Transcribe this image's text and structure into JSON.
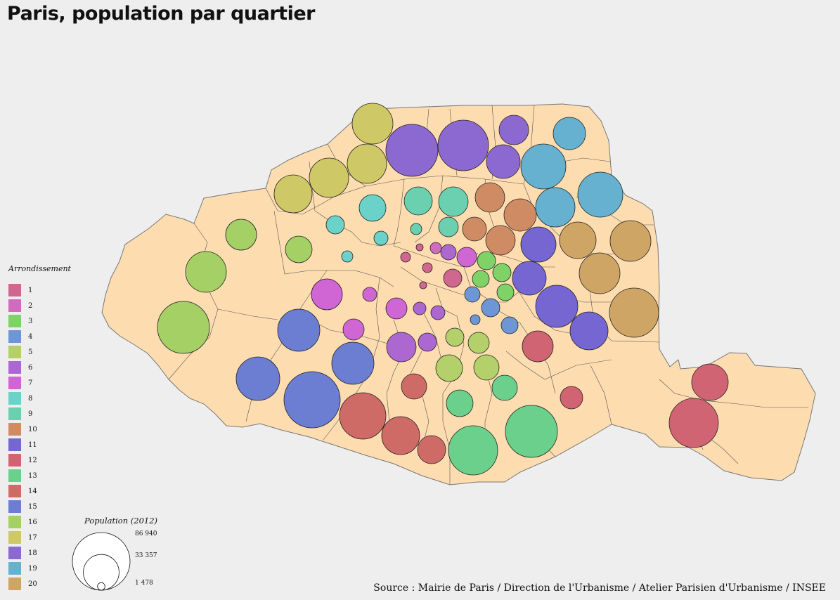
{
  "title": "Paris, population par quartier",
  "source": "Source : Mairie de Paris / Direction de l'Urbanisme / Atelier Parisien d'Urbanisme / INSEE",
  "colors": {
    "land": "#fddcb0",
    "border": "#555555",
    "background": "#eeeeee"
  },
  "legend": {
    "title": "Arrondissement",
    "items": [
      {
        "label": "1",
        "color": "#d0678f"
      },
      {
        "label": "2",
        "color": "#d06bc0"
      },
      {
        "label": "3",
        "color": "#7fd266"
      },
      {
        "label": "4",
        "color": "#6d96d6"
      },
      {
        "label": "5",
        "color": "#b4d06a"
      },
      {
        "label": "6",
        "color": "#ac68d0"
      },
      {
        "label": "7",
        "color": "#d066d3"
      },
      {
        "label": "8",
        "color": "#6ad2c8"
      },
      {
        "label": "9",
        "color": "#6bd0b0"
      },
      {
        "label": "10",
        "color": "#cf8c64"
      },
      {
        "label": "11",
        "color": "#7566d1"
      },
      {
        "label": "12",
        "color": "#d06473"
      },
      {
        "label": "13",
        "color": "#6bd08b"
      },
      {
        "label": "14",
        "color": "#cf6b66"
      },
      {
        "label": "15",
        "color": "#6c7ed1"
      },
      {
        "label": "16",
        "color": "#a4d066"
      },
      {
        "label": "17",
        "color": "#cfc866"
      },
      {
        "label": "18",
        "color": "#8c69d1"
      },
      {
        "label": "19",
        "color": "#65b1cf"
      },
      {
        "label": "20",
        "color": "#cfa566"
      }
    ]
  },
  "size_legend": {
    "title": "Population (2012)",
    "values": [
      {
        "value": 86940,
        "label": "86 940"
      },
      {
        "value": 33357,
        "label": "33 357"
      },
      {
        "value": 1478,
        "label": "1 478"
      }
    ]
  }
}
